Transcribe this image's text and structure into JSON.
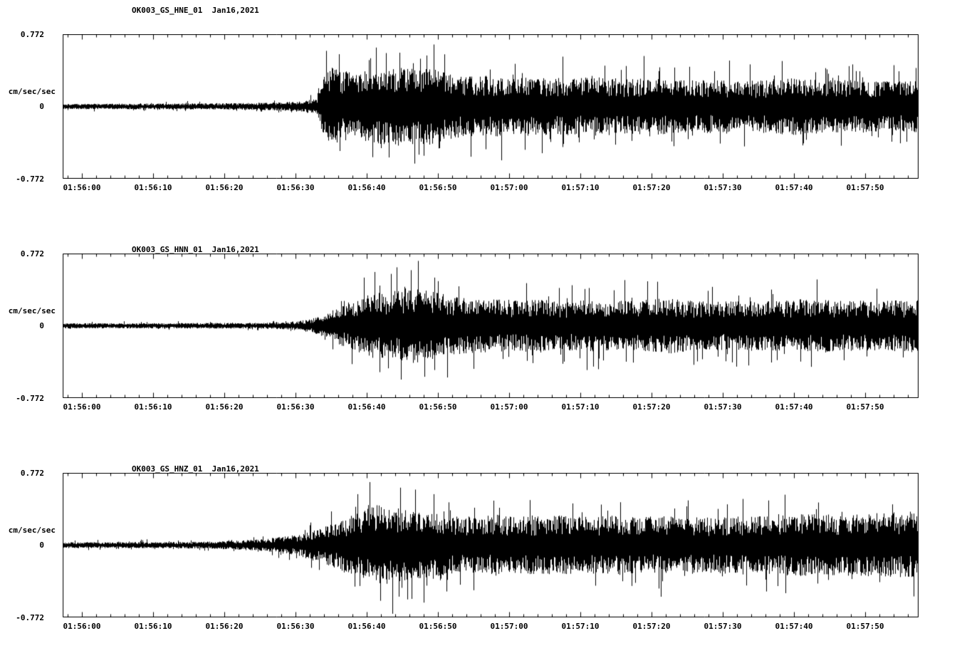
{
  "page": {
    "bg": "#ffffff",
    "fg": "#000000"
  },
  "colors": {
    "trace": "#000000",
    "axis": "#000000",
    "text": "#000000"
  },
  "axis": {
    "y_top": "0.772",
    "y_mid": "0",
    "y_bottom": "-0.772",
    "y_unit": "cm/sec/sec",
    "x_ticks": [
      "01:56:00",
      "01:56:10",
      "01:56:20",
      "01:56:30",
      "01:56:40",
      "01:56:50",
      "01:57:00",
      "01:57:10",
      "01:57:20",
      "01:57:30",
      "01:57:40",
      "01:57:50"
    ]
  },
  "chart_data": [
    {
      "type": "line",
      "title": "OK003_GS_HNE_01  Jan16,2021",
      "channel": "HNE",
      "date": "Jan16,2021",
      "ylabel": "cm/sec/sec",
      "ylim": [
        -0.772,
        0.772
      ],
      "y_tick_values": [
        0.772,
        0,
        -0.772
      ],
      "x_tick_labels": [
        "01:56:00",
        "01:56:10",
        "01:56:20",
        "01:56:30",
        "01:56:40",
        "01:56:50",
        "01:57:00",
        "01:57:10",
        "01:57:20",
        "01:57:30",
        "01:57:40",
        "01:57:50"
      ],
      "x_tick_seconds": [
        0,
        10,
        20,
        30,
        40,
        50,
        60,
        70,
        80,
        90,
        100,
        110
      ],
      "x_minor_tick_step_seconds": 2,
      "x_range_seconds": [
        -2.7,
        117.5
      ],
      "grid": false,
      "legend": false,
      "seed": 101,
      "envelope": [
        [
          -2.7,
          0.03
        ],
        [
          5,
          0.03
        ],
        [
          15,
          0.033
        ],
        [
          22,
          0.036
        ],
        [
          28,
          0.045
        ],
        [
          31,
          0.06
        ],
        [
          33,
          0.085
        ],
        [
          33.8,
          0.3
        ],
        [
          35,
          0.42
        ],
        [
          37,
          0.38
        ],
        [
          39,
          0.36
        ],
        [
          41,
          0.42
        ],
        [
          43,
          0.4
        ],
        [
          45,
          0.44
        ],
        [
          47,
          0.4
        ],
        [
          49,
          0.42
        ],
        [
          51,
          0.36
        ],
        [
          54,
          0.32
        ],
        [
          57,
          0.34
        ],
        [
          60,
          0.31
        ],
        [
          64,
          0.33
        ],
        [
          68,
          0.3
        ],
        [
          72,
          0.32
        ],
        [
          76,
          0.3
        ],
        [
          80,
          0.31
        ],
        [
          84,
          0.28
        ],
        [
          88,
          0.29
        ],
        [
          92,
          0.27
        ],
        [
          96,
          0.29
        ],
        [
          100,
          0.31
        ],
        [
          104,
          0.28
        ],
        [
          108,
          0.29
        ],
        [
          112,
          0.27
        ],
        [
          117.5,
          0.28
        ]
      ],
      "spikes": [
        [
          34.3,
          0.6
        ],
        [
          36.2,
          -0.48
        ],
        [
          40.5,
          0.52
        ],
        [
          43.1,
          -0.55
        ],
        [
          44.6,
          0.58
        ],
        [
          47.3,
          -0.52
        ],
        [
          48.4,
          0.55
        ],
        [
          50.2,
          -0.45
        ],
        [
          60.8,
          0.46
        ],
        [
          73.4,
          0.44
        ],
        [
          83.2,
          0.42
        ],
        [
          98.3,
          0.49
        ],
        [
          101.2,
          -0.42
        ],
        [
          104.6,
          0.4
        ]
      ]
    },
    {
      "type": "line",
      "title": "OK003_GS_HNN_01  Jan16,2021",
      "channel": "HNN",
      "date": "Jan16,2021",
      "ylabel": "cm/sec/sec",
      "ylim": [
        -0.772,
        0.772
      ],
      "y_tick_values": [
        0.772,
        0,
        -0.772
      ],
      "x_tick_labels": [
        "01:56:00",
        "01:56:10",
        "01:56:20",
        "01:56:30",
        "01:56:40",
        "01:56:50",
        "01:57:00",
        "01:57:10",
        "01:57:20",
        "01:57:30",
        "01:57:40",
        "01:57:50"
      ],
      "x_tick_seconds": [
        0,
        10,
        20,
        30,
        40,
        50,
        60,
        70,
        80,
        90,
        100,
        110
      ],
      "x_minor_tick_step_seconds": 2,
      "x_range_seconds": [
        -2.7,
        117.5
      ],
      "grid": false,
      "legend": false,
      "seed": 202,
      "envelope": [
        [
          -2.7,
          0.028
        ],
        [
          5,
          0.028
        ],
        [
          15,
          0.03
        ],
        [
          25,
          0.032
        ],
        [
          29,
          0.04
        ],
        [
          32,
          0.07
        ],
        [
          34,
          0.12
        ],
        [
          36,
          0.2
        ],
        [
          38,
          0.28
        ],
        [
          40,
          0.33
        ],
        [
          42,
          0.36
        ],
        [
          44,
          0.4
        ],
        [
          46,
          0.42
        ],
        [
          47.5,
          0.44
        ],
        [
          49,
          0.38
        ],
        [
          51,
          0.34
        ],
        [
          53,
          0.31
        ],
        [
          56,
          0.29
        ],
        [
          60,
          0.28
        ],
        [
          64,
          0.29
        ],
        [
          68,
          0.27
        ],
        [
          72,
          0.28
        ],
        [
          76,
          0.27
        ],
        [
          80,
          0.29
        ],
        [
          83,
          0.3
        ],
        [
          86,
          0.27
        ],
        [
          90,
          0.26
        ],
        [
          94,
          0.27
        ],
        [
          98,
          0.27
        ],
        [
          101,
          0.29
        ],
        [
          103,
          0.3
        ],
        [
          106,
          0.27
        ],
        [
          110,
          0.27
        ],
        [
          114,
          0.28
        ],
        [
          117.5,
          0.28
        ]
      ],
      "spikes": [
        [
          39.6,
          0.52
        ],
        [
          41.8,
          -0.5
        ],
        [
          43.4,
          0.56
        ],
        [
          44.8,
          -0.58
        ],
        [
          46.2,
          0.6
        ],
        [
          47.2,
          0.7
        ],
        [
          48.1,
          -0.55
        ],
        [
          49.5,
          0.52
        ],
        [
          51.3,
          -0.48
        ],
        [
          62.4,
          0.46
        ],
        [
          71.8,
          -0.44
        ],
        [
          79.4,
          0.48
        ],
        [
          88.5,
          0.42
        ],
        [
          103.2,
          0.5
        ],
        [
          111.6,
          0.4
        ]
      ]
    },
    {
      "type": "line",
      "title": "OK003_GS_HNZ_01  Jan16,2021",
      "channel": "HNZ",
      "date": "Jan16,2021",
      "ylabel": "cm/sec/sec",
      "ylim": [
        -0.772,
        0.772
      ],
      "y_tick_values": [
        0.772,
        0,
        -0.772
      ],
      "x_tick_labels": [
        "01:56:00",
        "01:56:10",
        "01:56:20",
        "01:56:30",
        "01:56:40",
        "01:56:50",
        "01:57:00",
        "01:57:10",
        "01:57:20",
        "01:57:30",
        "01:57:40",
        "01:57:50"
      ],
      "x_tick_seconds": [
        0,
        10,
        20,
        30,
        40,
        50,
        60,
        70,
        80,
        90,
        100,
        110
      ],
      "x_minor_tick_step_seconds": 2,
      "x_range_seconds": [
        -2.7,
        117.5
      ],
      "grid": false,
      "legend": false,
      "seed": 303,
      "envelope": [
        [
          -2.7,
          0.032
        ],
        [
          5,
          0.032
        ],
        [
          12,
          0.034
        ],
        [
          18,
          0.038
        ],
        [
          22,
          0.05
        ],
        [
          26,
          0.07
        ],
        [
          30,
          0.11
        ],
        [
          33,
          0.17
        ],
        [
          36,
          0.26
        ],
        [
          38,
          0.33
        ],
        [
          40,
          0.4
        ],
        [
          41.5,
          0.44
        ],
        [
          43,
          0.42
        ],
        [
          45,
          0.4
        ],
        [
          47,
          0.36
        ],
        [
          49,
          0.34
        ],
        [
          52,
          0.32
        ],
        [
          55,
          0.31
        ],
        [
          58,
          0.33
        ],
        [
          62,
          0.31
        ],
        [
          66,
          0.32
        ],
        [
          70,
          0.31
        ],
        [
          74,
          0.32
        ],
        [
          78,
          0.3
        ],
        [
          82,
          0.32
        ],
        [
          86,
          0.3
        ],
        [
          90,
          0.31
        ],
        [
          94,
          0.32
        ],
        [
          98,
          0.33
        ],
        [
          102,
          0.34
        ],
        [
          105,
          0.33
        ],
        [
          108,
          0.33
        ],
        [
          111,
          0.35
        ],
        [
          114,
          0.36
        ],
        [
          117.5,
          0.34
        ]
      ],
      "spikes": [
        [
          38.7,
          0.55
        ],
        [
          40.4,
          0.68
        ],
        [
          41.9,
          -0.6
        ],
        [
          43.6,
          -0.74
        ],
        [
          44.7,
          0.62
        ],
        [
          46.3,
          -0.58
        ],
        [
          48.0,
          -0.62
        ],
        [
          49.4,
          0.55
        ],
        [
          51.2,
          -0.5
        ],
        [
          57.8,
          0.48
        ],
        [
          68.9,
          0.45
        ],
        [
          77.2,
          -0.44
        ],
        [
          90.6,
          0.44
        ],
        [
          103.4,
          0.46
        ],
        [
          113.8,
          0.44
        ]
      ]
    }
  ]
}
